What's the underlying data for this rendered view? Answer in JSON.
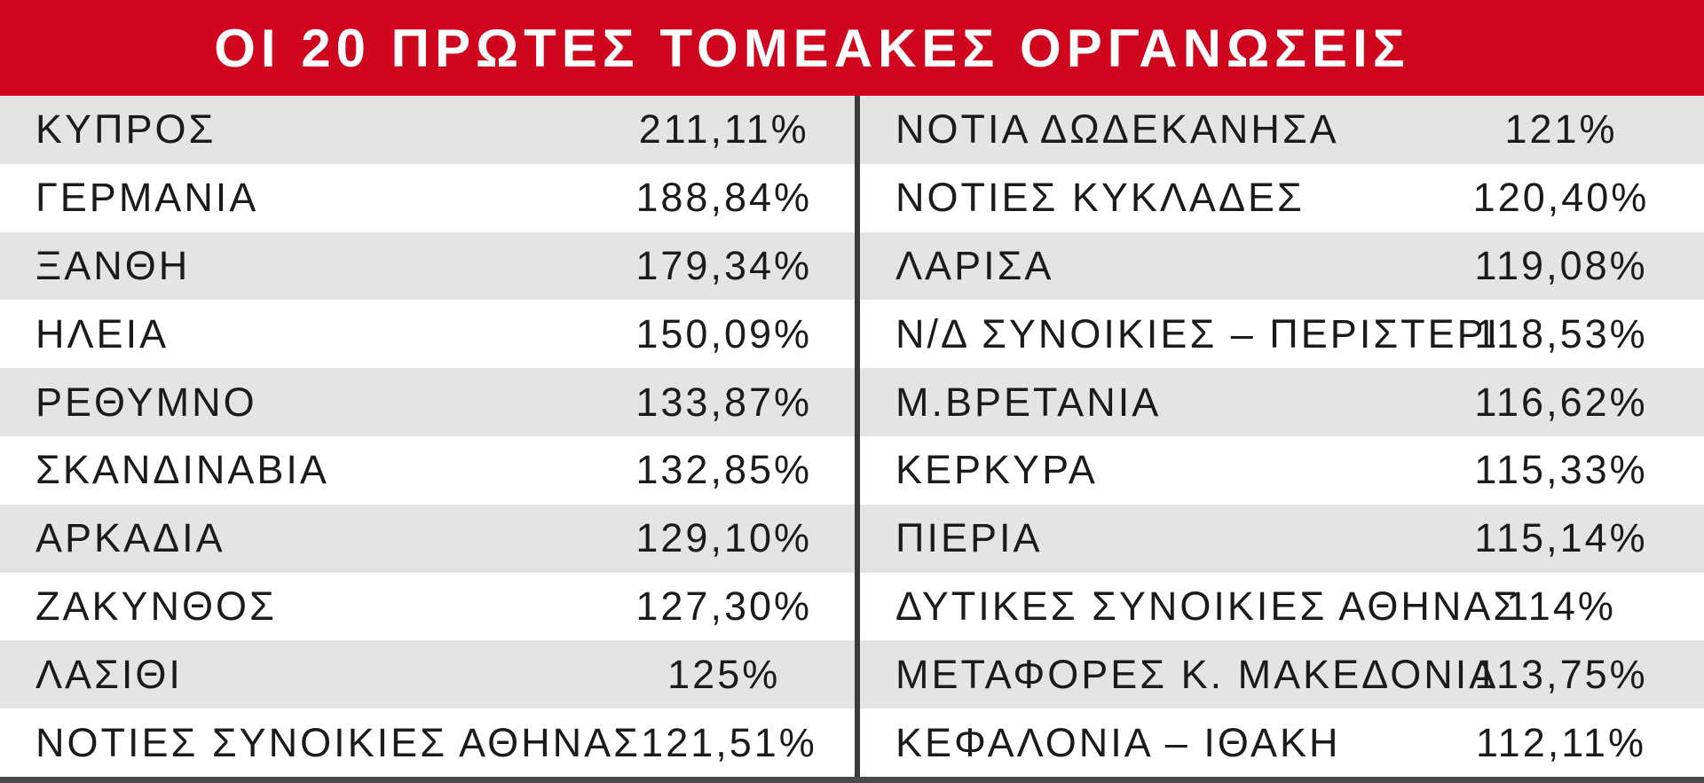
{
  "title": "ΟΙ 20 ΠΡΩΤΕΣ ΤΟΜΕΑΚΕΣ ΟΡΓΑΝΩΣΕΙΣ",
  "colors": {
    "header_bg": "#d0061f",
    "row_shaded": "#e3e4e6",
    "divider": "#3a3a3a"
  },
  "left_column": [
    {
      "name": "ΚΥΠΡΟΣ",
      "value": "211,11%"
    },
    {
      "name": "ΓΕΡΜΑΝΙΑ",
      "value": "188,84%"
    },
    {
      "name": "ΞΑΝΘΗ",
      "value": "179,34%"
    },
    {
      "name": "ΗΛΕΙΑ",
      "value": "150,09%"
    },
    {
      "name": "ΡΕΘΥΜΝΟ",
      "value": "133,87%"
    },
    {
      "name": "ΣΚΑΝΔΙΝΑΒΙΑ",
      "value": "132,85%"
    },
    {
      "name": "ΑΡΚΑΔΙΑ",
      "value": "129,10%"
    },
    {
      "name": "ΖΑΚΥΝΘΟΣ",
      "value": "127,30%"
    },
    {
      "name": "ΛΑΣΙΘΙ",
      "value": "125%"
    },
    {
      "name": "ΝΟΤΙΕΣ ΣΥΝΟΙΚΙΕΣ ΑΘΗΝΑΣ",
      "value": "121,51%"
    }
  ],
  "right_column": [
    {
      "name": "ΝΟΤΙΑ ΔΩΔΕΚΑΝΗΣΑ",
      "value": "121%"
    },
    {
      "name": "ΝΟΤΙΕΣ ΚΥΚΛΑΔΕΣ",
      "value": "120,40%"
    },
    {
      "name": "ΛΑΡΙΣΑ",
      "value": "119,08%"
    },
    {
      "name": "Ν/Δ ΣΥΝΟΙΚΙΕΣ – ΠΕΡΙΣΤΕΡΙ",
      "value": "118,53%"
    },
    {
      "name": "Μ.ΒΡΕΤΑΝΙΑ",
      "value": "116,62%"
    },
    {
      "name": "ΚΕΡΚΥΡΑ",
      "value": "115,33%"
    },
    {
      "name": "ΠΙΕΡΙΑ",
      "value": "115,14%"
    },
    {
      "name": "ΔΥΤΙΚΕΣ ΣΥΝΟΙΚΙΕΣ ΑΘΗΝΑΣ",
      "value": "114%"
    },
    {
      "name": "ΜΕΤΑΦΟΡΕΣ Κ. ΜΑΚΕΔΟΝΙΑ",
      "value": "113,75%"
    },
    {
      "name": "ΚΕΦΑΛΟΝΙΑ – ΙΘΑΚΗ",
      "value": "112,11%"
    }
  ]
}
